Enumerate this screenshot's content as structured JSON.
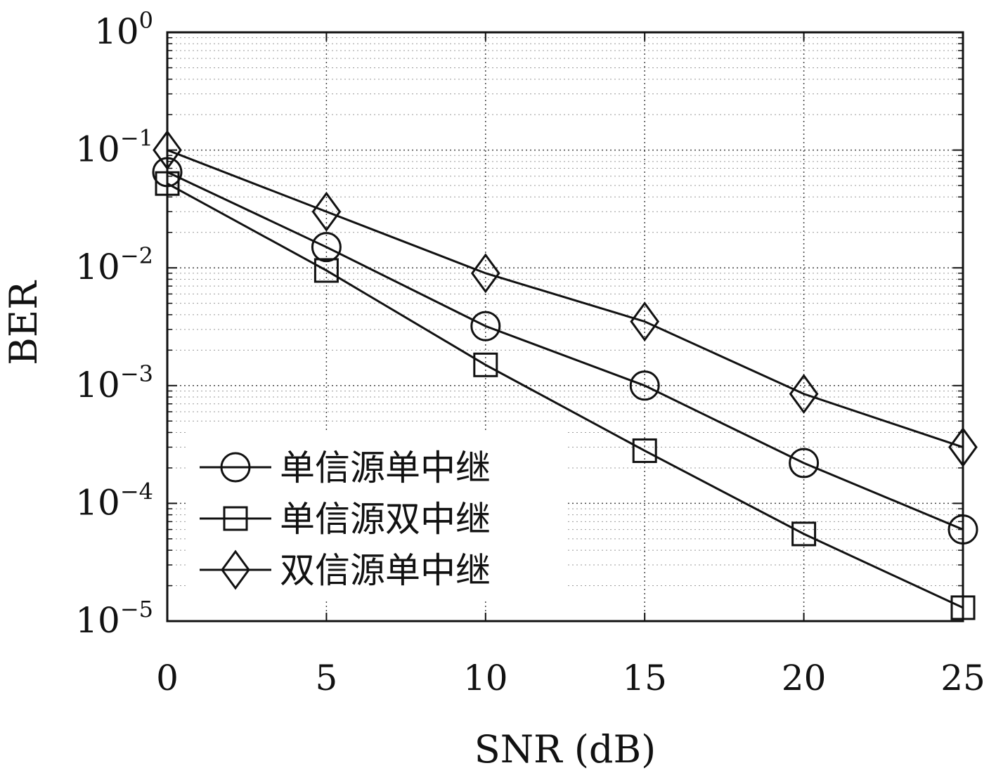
{
  "chart_data": {
    "type": "line",
    "xlabel": "SNR (dB)",
    "ylabel": "BER",
    "x": [
      0,
      5,
      10,
      15,
      20,
      25
    ],
    "xlim": [
      0,
      25
    ],
    "ylim": [
      1e-05,
      1
    ],
    "yscale": "log",
    "grid": true,
    "xticks": [
      "0",
      "5",
      "10",
      "15",
      "20",
      "25"
    ],
    "yticks": [
      {
        "value": 1,
        "base": "10",
        "exp": "0"
      },
      {
        "value": 0.1,
        "base": "10",
        "exp": "−1"
      },
      {
        "value": 0.01,
        "base": "10",
        "exp": "−2"
      },
      {
        "value": 0.001,
        "base": "10",
        "exp": "−3"
      },
      {
        "value": 0.0001,
        "base": "10",
        "exp": "−4"
      },
      {
        "value": 1e-05,
        "base": "10",
        "exp": "−5"
      }
    ],
    "legend_position": "bottom-left",
    "series": [
      {
        "name": "单信源单中继",
        "marker": "circle",
        "values": [
          0.065,
          0.015,
          0.0032,
          0.001,
          0.00022,
          6e-05
        ]
      },
      {
        "name": "单信源双中继",
        "marker": "square",
        "values": [
          0.052,
          0.0095,
          0.0015,
          0.00028,
          5.5e-05,
          1.3e-05
        ]
      },
      {
        "name": "双信源单中继",
        "marker": "diamond",
        "values": [
          0.1,
          0.03,
          0.009,
          0.0035,
          0.00085,
          0.0003
        ]
      }
    ]
  }
}
